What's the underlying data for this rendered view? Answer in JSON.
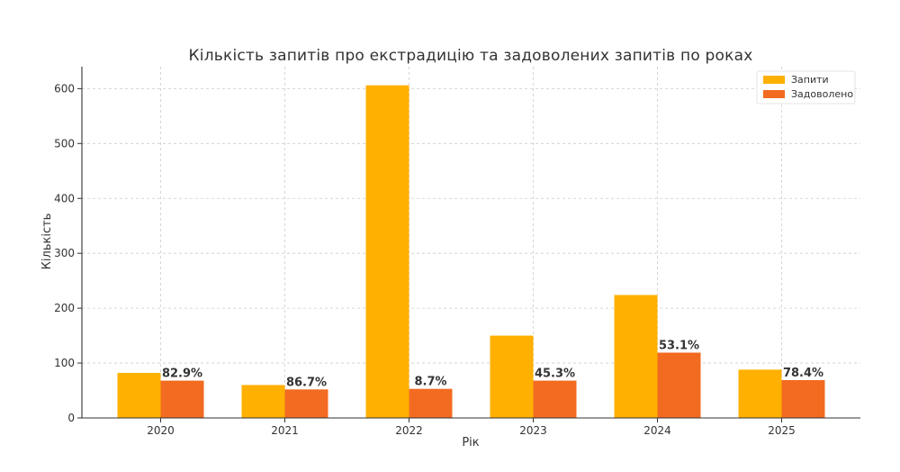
{
  "chart_data": {
    "type": "bar",
    "title": "Кількість запитів про екстрадицію та задоволених запитів по роках",
    "xlabel": "Рік",
    "ylabel": "Кількість",
    "categories": [
      "2020",
      "2021",
      "2022",
      "2023",
      "2024",
      "2025"
    ],
    "series": [
      {
        "name": "Запити",
        "values": [
          82,
          60,
          606,
          150,
          224,
          88
        ],
        "color": "#FFB000"
      },
      {
        "name": "Задоволено",
        "values": [
          68,
          52,
          53,
          68,
          119,
          69
        ],
        "color": "#F26B21"
      }
    ],
    "data_labels": [
      "82.9%",
      "86.7%",
      "8.7%",
      "45.3%",
      "53.1%",
      "78.4%"
    ],
    "ylim": [
      0,
      640
    ],
    "yticks": [
      0,
      100,
      200,
      300,
      400,
      500,
      600
    ],
    "grid": true,
    "legend_position": "top-right"
  }
}
